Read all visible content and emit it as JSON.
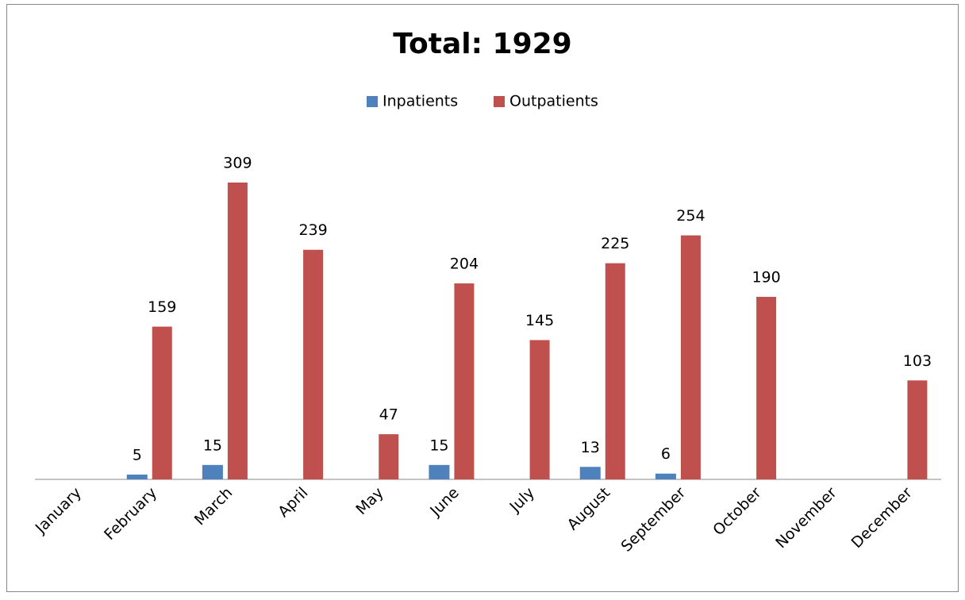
{
  "chart_data": {
    "type": "bar",
    "title": "Total: 1929",
    "categories": [
      "January",
      "February",
      "March",
      "April",
      "May",
      "June",
      "July",
      "August",
      "September",
      "October",
      "November",
      "December"
    ],
    "series": [
      {
        "name": "Inpatients",
        "color": "#4f81bd",
        "values": [
          null,
          5,
          15,
          null,
          null,
          15,
          null,
          13,
          6,
          null,
          null,
          null
        ]
      },
      {
        "name": "Outpatients",
        "color": "#c0504d",
        "values": [
          null,
          159,
          309,
          239,
          47,
          204,
          145,
          225,
          254,
          190,
          null,
          103
        ]
      }
    ],
    "legend": "top"
  }
}
